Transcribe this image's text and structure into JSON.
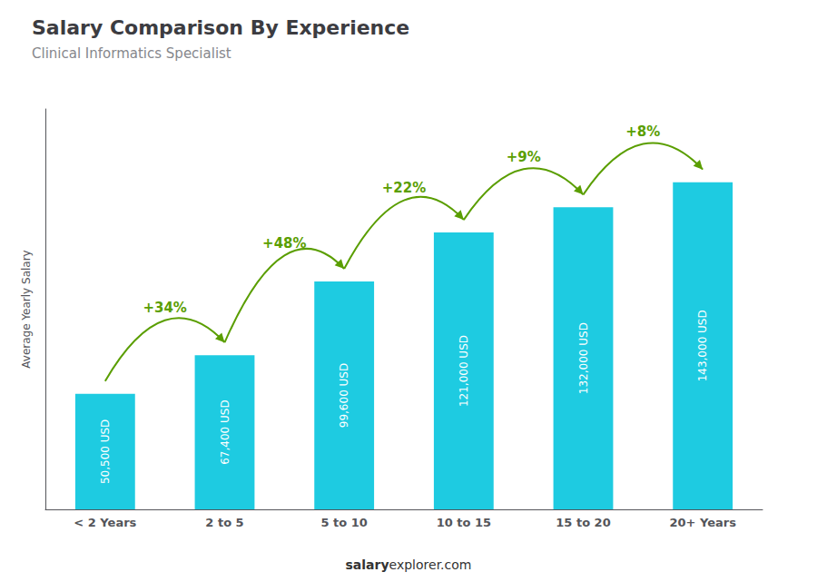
{
  "chart_data": {
    "type": "bar",
    "title": "Salary Comparison By Experience",
    "subtitle": "Clinical Informatics Specialist",
    "categories": [
      "< 2 Years",
      "2 to 5",
      "5 to 10",
      "10 to 15",
      "15 to 20",
      "20+ Years"
    ],
    "values": [
      50500,
      67400,
      99600,
      121000,
      132000,
      143000
    ],
    "value_labels": [
      "50,500 USD",
      "67,400 USD",
      "99,600 USD",
      "121,000 USD",
      "132,000 USD",
      "143,000 USD"
    ],
    "data_labels": true,
    "color": "#1ecbe1",
    "ylabel": "Average Yearly Salary",
    "ylim": [
      0,
      175000
    ],
    "tick_labels": "x",
    "grid": false,
    "annotations": [
      "+34%",
      "+48%",
      "+22%",
      "+9%",
      "+8%"
    ],
    "watermark": [
      "salary",
      "explorer.com"
    ]
  }
}
